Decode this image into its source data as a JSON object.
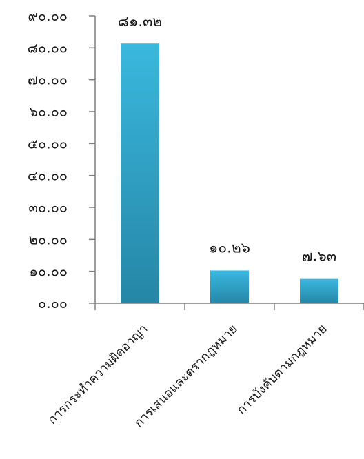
{
  "chart_data": {
    "type": "bar",
    "categories": [
      "การกระทำความผิดอาญา",
      "การเสนอและตรากฎหมาย",
      "การบังคับตามกฎหมาย"
    ],
    "values": [
      81.32,
      10.26,
      7.63
    ],
    "data_labels": [
      "๘๑.๓๒",
      "๑๐.๒๖",
      "๗.๖๓"
    ],
    "y_ticks": [
      {
        "value": 0,
        "label": "๐.๐๐"
      },
      {
        "value": 10,
        "label": "๑๐.๐๐"
      },
      {
        "value": 20,
        "label": "๒๐.๐๐"
      },
      {
        "value": 30,
        "label": "๓๐.๐๐"
      },
      {
        "value": 40,
        "label": "๔๐.๐๐"
      },
      {
        "value": 50,
        "label": "๕๐.๐๐"
      },
      {
        "value": 60,
        "label": "๖๐.๐๐"
      },
      {
        "value": 70,
        "label": "๗๐.๐๐"
      },
      {
        "value": 80,
        "label": "๘๐.๐๐"
      },
      {
        "value": 90,
        "label": "๙๐.๐๐"
      }
    ],
    "ylim": [
      0,
      90
    ],
    "title": "",
    "xlabel": "",
    "ylabel": "",
    "grid": false,
    "legend": "none",
    "colors": {
      "bar_top": "#3ab8de",
      "bar_bottom": "#2586a6",
      "axis": "#7f7f7f",
      "text": "#1a1a1a"
    }
  }
}
